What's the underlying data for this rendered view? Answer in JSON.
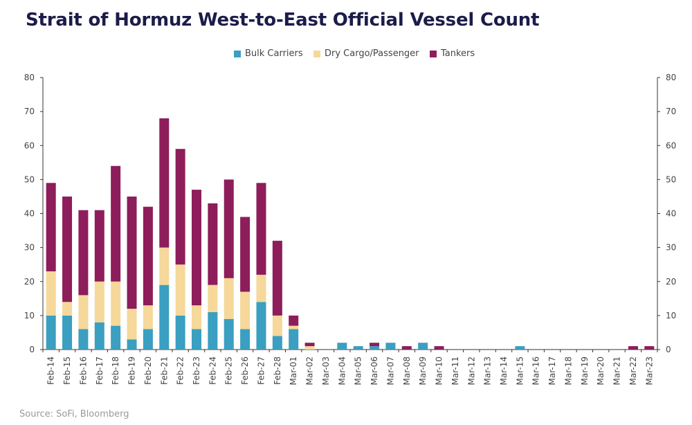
{
  "title": "Strait of Hormuz West-to-East Official Vessel Count",
  "source": "Source: SoFi, Bloomberg",
  "colors": {
    "bulk": "#3a9fc0",
    "dry": "#f5d89a",
    "tankers": "#8e1d5b",
    "text": "#1c1c4a"
  },
  "legend": [
    {
      "label": "Bulk Carriers",
      "color": "#3a9fc0"
    },
    {
      "label": "Dry Cargo/Passenger",
      "color": "#f5d89a"
    },
    {
      "label": "Tankers",
      "color": "#8e1d5b"
    }
  ],
  "chart_data": {
    "type": "bar",
    "stacked": true,
    "title": "Strait of Hormuz West-to-East Official Vessel Count",
    "ylim": [
      0,
      80
    ],
    "yticks": [
      0,
      10,
      20,
      30,
      40,
      50,
      60,
      70,
      80
    ],
    "legend_position": "top-center",
    "categories": [
      "Feb-14",
      "Feb-15",
      "Feb-16",
      "Feb-17",
      "Feb-18",
      "Feb-19",
      "Feb-20",
      "Feb-21",
      "Feb-22",
      "Feb-23",
      "Feb-24",
      "Feb-25",
      "Feb-26",
      "Feb-27",
      "Feb-28",
      "Mar-01",
      "Mar-02",
      "Mar-03",
      "Mar-04",
      "Mar-05",
      "Mar-06",
      "Mar-07",
      "Mar-08",
      "Mar-09",
      "Mar-10",
      "Mar-11",
      "Mar-12",
      "Mar-13",
      "Mar-14",
      "Mar-15",
      "Mar-16",
      "Mar-17",
      "Mar-18",
      "Mar-19",
      "Mar-20",
      "Mar-21",
      "Mar-22",
      "Mar-23"
    ],
    "series": [
      {
        "name": "Bulk Carriers",
        "key": "bulk",
        "values": [
          10,
          10,
          6,
          8,
          7,
          3,
          6,
          19,
          10,
          6,
          11,
          9,
          6,
          14,
          4,
          6,
          0,
          0,
          2,
          1,
          1,
          2,
          0,
          2,
          0,
          0,
          0,
          0,
          0,
          1,
          0,
          0,
          0,
          0,
          0,
          0,
          0,
          0
        ]
      },
      {
        "name": "Dry Cargo/Passenger",
        "key": "dry",
        "values": [
          13,
          4,
          10,
          12,
          13,
          9,
          7,
          11,
          15,
          7,
          8,
          12,
          11,
          8,
          6,
          1,
          1,
          0,
          0,
          0,
          0,
          0,
          0,
          0,
          0,
          0,
          0,
          0,
          0,
          0,
          0,
          0,
          0,
          0,
          0,
          0,
          0,
          0
        ]
      },
      {
        "name": "Tankers",
        "key": "tankers",
        "values": [
          26,
          31,
          25,
          21,
          34,
          33,
          29,
          38,
          34,
          34,
          24,
          29,
          22,
          27,
          22,
          3,
          1,
          0,
          0,
          0,
          1,
          0,
          1,
          0,
          1,
          0,
          0,
          0,
          0,
          0,
          0,
          0,
          0,
          0,
          0,
          0,
          1,
          1
        ]
      }
    ]
  }
}
